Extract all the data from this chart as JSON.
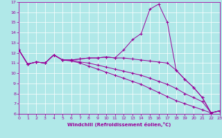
{
  "xlabel": "Windchill (Refroidissement éolien,°C)",
  "bg_color": "#b0e8e8",
  "line_color": "#990099",
  "grid_color": "#ffffff",
  "ylim": [
    6,
    17
  ],
  "xlim": [
    0,
    23
  ],
  "yticks": [
    6,
    7,
    8,
    9,
    10,
    11,
    12,
    13,
    14,
    15,
    16,
    17
  ],
  "xticks": [
    0,
    1,
    2,
    3,
    4,
    5,
    6,
    7,
    8,
    9,
    10,
    11,
    12,
    13,
    14,
    15,
    16,
    17,
    18,
    19,
    20,
    21,
    22,
    23
  ],
  "lines": [
    {
      "x": [
        0,
        1,
        2,
        3,
        4,
        5,
        6,
        7,
        8,
        9,
        10,
        11,
        12,
        13,
        14,
        15,
        16,
        17,
        18,
        19,
        20,
        21,
        22,
        23
      ],
      "y": [
        12.3,
        10.9,
        11.1,
        11.0,
        11.8,
        11.3,
        11.3,
        11.4,
        11.5,
        11.5,
        11.6,
        11.5,
        12.3,
        13.3,
        13.9,
        16.3,
        16.8,
        15.0,
        10.3,
        9.4,
        8.6,
        7.6,
        6.1,
        6.3
      ]
    },
    {
      "x": [
        0,
        1,
        2,
        3,
        4,
        5,
        6,
        7,
        8,
        9,
        10,
        11,
        12,
        13,
        14,
        15,
        16,
        17,
        18,
        19,
        20,
        21,
        22,
        23
      ],
      "y": [
        12.3,
        10.9,
        11.1,
        11.0,
        11.8,
        11.3,
        11.3,
        11.4,
        11.5,
        11.5,
        11.6,
        11.5,
        11.5,
        11.4,
        11.3,
        11.2,
        11.1,
        11.0,
        10.3,
        9.4,
        8.6,
        7.6,
        6.1,
        6.3
      ]
    },
    {
      "x": [
        0,
        1,
        2,
        3,
        4,
        5,
        6,
        7,
        8,
        9,
        10,
        11,
        12,
        13,
        14,
        15,
        16,
        17,
        18,
        19,
        20,
        21,
        22,
        23
      ],
      "y": [
        12.3,
        10.9,
        11.1,
        11.0,
        11.8,
        11.3,
        11.3,
        11.1,
        11.0,
        10.8,
        10.6,
        10.4,
        10.2,
        10.0,
        9.8,
        9.5,
        9.2,
        8.9,
        8.5,
        8.0,
        7.6,
        7.2,
        6.1,
        6.3
      ]
    },
    {
      "x": [
        0,
        1,
        2,
        3,
        4,
        5,
        6,
        7,
        8,
        9,
        10,
        11,
        12,
        13,
        14,
        15,
        16,
        17,
        18,
        19,
        20,
        21,
        22,
        23
      ],
      "y": [
        12.3,
        10.9,
        11.1,
        11.0,
        11.8,
        11.3,
        11.2,
        11.0,
        10.7,
        10.4,
        10.1,
        9.8,
        9.5,
        9.2,
        8.9,
        8.5,
        8.1,
        7.7,
        7.3,
        7.0,
        6.7,
        6.4,
        6.1,
        6.3
      ]
    }
  ]
}
